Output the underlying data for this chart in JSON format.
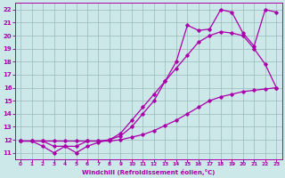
{
  "xlabel": "Windchill (Refroidissement éolien,°C)",
  "bg_color": "#cce8e8",
  "line_color": "#aa00aa",
  "grid_color": "#99bbbb",
  "xlim": [
    -0.5,
    23.5
  ],
  "ylim": [
    10.5,
    22.5
  ],
  "xticks": [
    0,
    1,
    2,
    3,
    4,
    5,
    6,
    7,
    8,
    9,
    10,
    11,
    12,
    13,
    14,
    15,
    16,
    17,
    18,
    19,
    20,
    21,
    22,
    23
  ],
  "yticks": [
    11,
    12,
    13,
    14,
    15,
    16,
    17,
    18,
    19,
    20,
    21,
    22
  ],
  "line1_x": [
    0,
    1,
    2,
    3,
    4,
    5,
    6,
    7,
    8,
    9,
    10,
    11,
    12,
    13,
    14,
    15,
    16,
    17,
    18,
    19,
    20,
    21,
    22,
    23
  ],
  "line1_y": [
    11.9,
    11.9,
    11.9,
    11.9,
    11.9,
    11.9,
    11.9,
    11.9,
    11.9,
    12.0,
    12.2,
    12.4,
    12.7,
    13.1,
    13.5,
    14.0,
    14.5,
    15.0,
    15.3,
    15.5,
    15.7,
    15.8,
    15.9,
    16.0
  ],
  "line2_x": [
    0,
    1,
    2,
    3,
    4,
    5,
    6,
    7,
    8,
    9,
    10,
    11,
    12,
    13,
    14,
    15,
    16,
    17,
    18,
    19,
    20,
    21,
    22,
    23
  ],
  "line2_y": [
    11.9,
    11.9,
    11.5,
    11.0,
    11.5,
    11.0,
    11.5,
    11.8,
    12.0,
    12.5,
    13.5,
    14.5,
    15.5,
    16.5,
    17.5,
    18.5,
    19.5,
    20.0,
    20.3,
    20.2,
    20.0,
    19.0,
    17.8,
    16.0
  ],
  "line3_x": [
    0,
    1,
    2,
    3,
    4,
    5,
    6,
    7,
    8,
    9,
    10,
    11,
    12,
    13,
    14,
    15,
    16,
    17,
    18,
    19,
    20,
    21,
    22,
    23
  ],
  "line3_y": [
    11.9,
    11.9,
    11.9,
    11.5,
    11.5,
    11.5,
    11.9,
    11.9,
    12.0,
    12.3,
    13.0,
    14.0,
    15.0,
    16.5,
    18.0,
    20.8,
    20.4,
    20.5,
    22.0,
    21.8,
    20.2,
    19.2,
    22.0,
    21.8
  ]
}
